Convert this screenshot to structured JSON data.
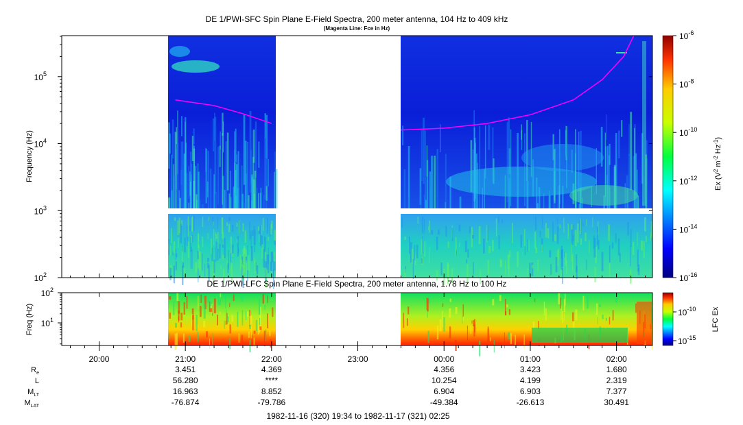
{
  "top_panel": {
    "title": "DE 1/PWI-SFC  Spin Plane E-Field Spectra, 200 meter antenna, 104 Hz to 409 kHz",
    "subtitle": "(Magenta Line: Fce in Hz)",
    "ylabel": "Frequency (Hz)",
    "yticks": [
      {
        "base": "10",
        "exp": "2",
        "v": 100
      },
      {
        "base": "10",
        "exp": "3",
        "v": 1000
      },
      {
        "base": "10",
        "exp": "4",
        "v": 10000
      },
      {
        "base": "10",
        "exp": "5",
        "v": 100000
      }
    ],
    "colorbar": {
      "label_main": "Ex (V",
      "label_rest": " m",
      "label_hz": " Hz",
      "label_close": ")",
      "exp2": "2",
      "exp_m2": "-2",
      "exp_m1": "-1",
      "ticks": [
        {
          "base": "10",
          "exp": "-6"
        },
        {
          "base": "10",
          "exp": "-8"
        },
        {
          "base": "10",
          "exp": "-10"
        },
        {
          "base": "10",
          "exp": "-12"
        },
        {
          "base": "10",
          "exp": "-14"
        },
        {
          "base": "10",
          "exp": "-16"
        }
      ]
    }
  },
  "bottom_panel": {
    "title": "DE 1/PWI-LFC  Spin Plane E-Field Spectra, 200 meter antenna, 1.78 Hz to 100 Hz",
    "ylabel": "Freq (Hz)",
    "yticks": [
      {
        "base": "10",
        "exp": "1",
        "v": 10
      },
      {
        "base": "10",
        "exp": "2",
        "v": 100
      }
    ],
    "colorbar": {
      "label": "LFC Ex",
      "ticks": [
        {
          "base": "10",
          "exp": "-10"
        },
        {
          "base": "10",
          "exp": "-15"
        }
      ]
    }
  },
  "x_axis": {
    "time_ticks": [
      "20:00",
      "21:00",
      "22:00",
      "23:00",
      "00:00",
      "01:00",
      "02:00"
    ]
  },
  "ephemeris": {
    "row_labels": {
      "re": "R",
      "re_sub": "e",
      "l": "L",
      "mlt": "M",
      "mlt_sub": "LT",
      "mlat": "M",
      "mlat_sub": "LAT"
    },
    "rows": {
      "re": [
        "3.451",
        "4.369",
        "4.356",
        "3.423",
        "1.680"
      ],
      "l": [
        "56.280",
        "****",
        "10.254",
        "4.199",
        "2.319"
      ],
      "mlt": [
        "16.963",
        "8.852",
        "6.904",
        "6.903",
        "7.377"
      ],
      "mlat": [
        "-76.874",
        "-79.786",
        "-49.384",
        "-26.613",
        "30.491"
      ]
    }
  },
  "time_range": "1982-11-16 (320) 19:34 to 1982-11-17 (321) 02:25",
  "chart_data": [
    {
      "type": "heatmap",
      "title": "DE 1/PWI-SFC  Spin Plane E-Field Spectra, 200 meter antenna, 104 Hz to 409 kHz",
      "subtitle": "(Magenta Line: Fce in Hz)",
      "ylabel": "Frequency (Hz)",
      "yscale": "log",
      "ylim": [
        100,
        409000
      ],
      "xlim": [
        "19:34",
        "02:25"
      ],
      "colorbar_label": "Ex (V^2 m^-2 Hz^-1)",
      "colorbar_range": [
        1e-16,
        1e-06
      ],
      "data_intervals": [
        [
          "20:50",
          "22:02"
        ],
        [
          "23:29",
          "02:25"
        ]
      ],
      "gap_frequency_band_hz": [
        900,
        1050
      ],
      "fce_line_series": [
        {
          "name": "Fce",
          "color": "#ff00ff",
          "points": [
            [
              "20:53",
              45000
            ],
            [
              "21:20",
              37000
            ],
            [
              "21:40",
              28000
            ],
            [
              "22:00",
              20000
            ]
          ]
        },
        {
          "name": "Fce",
          "color": "#ff00ff",
          "points": [
            [
              "23:30",
              16000
            ],
            [
              "00:00",
              17000
            ],
            [
              "00:30",
              20000
            ],
            [
              "01:00",
              27000
            ],
            [
              "01:30",
              45000
            ],
            [
              "01:50",
              90000
            ],
            [
              "02:05",
              200000
            ],
            [
              "02:12",
              409000
            ]
          ]
        }
      ]
    },
    {
      "type": "heatmap",
      "title": "DE 1/PWI-LFC  Spin Plane E-Field Spectra, 200 meter antenna, 1.78 Hz to 100 Hz",
      "ylabel": "Freq (Hz)",
      "yscale": "log",
      "ylim": [
        1.78,
        100
      ],
      "colorbar_label": "LFC Ex",
      "colorbar_ticks": [
        "10^-10",
        "10^-15"
      ],
      "data_intervals": [
        [
          "20:50",
          "22:02"
        ],
        [
          "23:29",
          "02:25"
        ]
      ]
    }
  ],
  "colors": {
    "fce_line": "#ff00ff",
    "background_blue": "#0a1ed8"
  }
}
